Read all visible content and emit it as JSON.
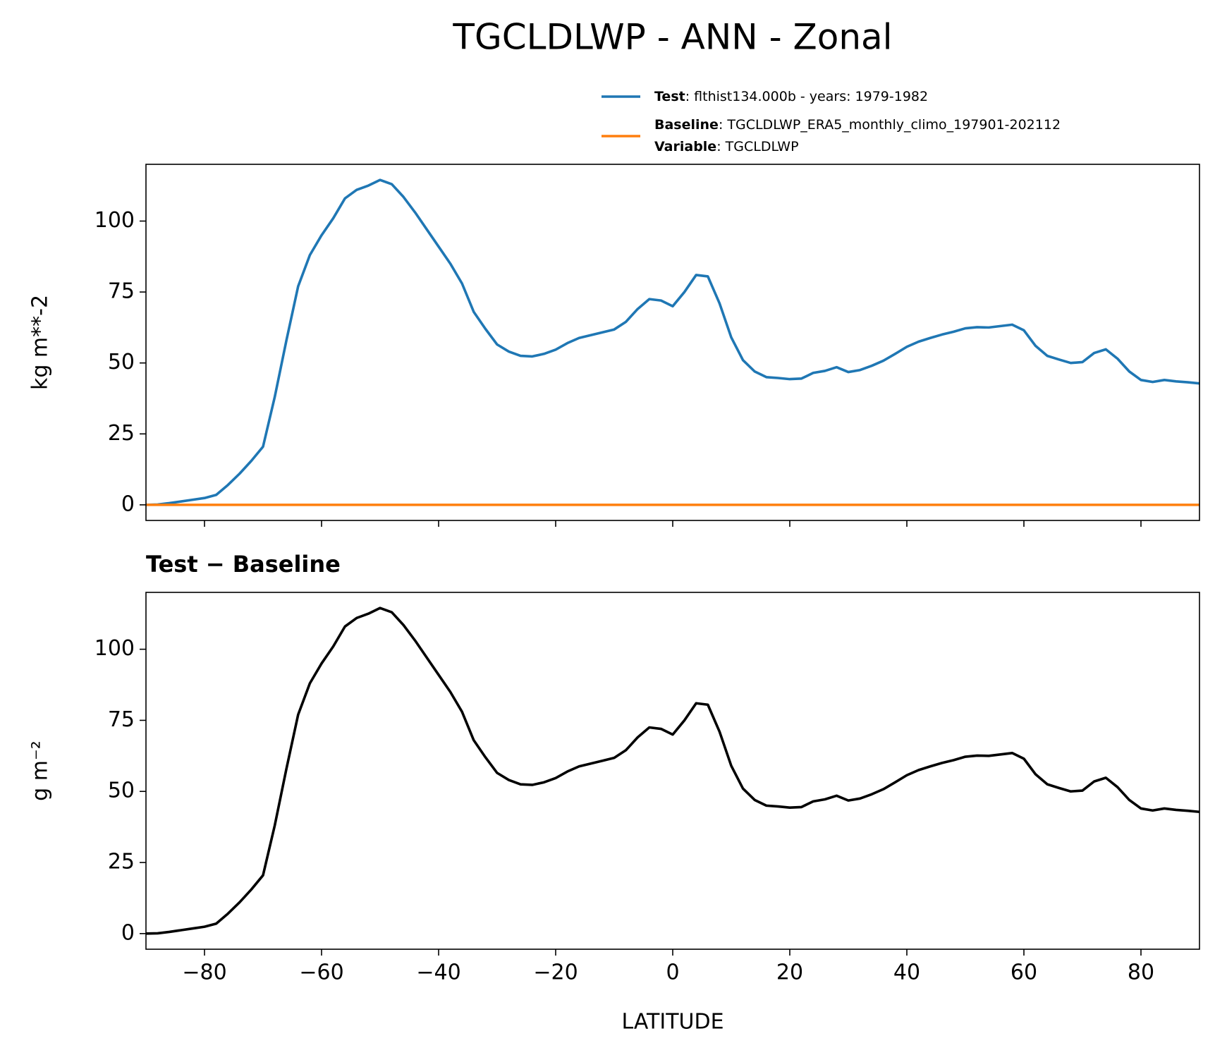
{
  "title": "TGCLDLWP - ANN - Zonal",
  "chart_data": [
    {
      "type": "line",
      "ylabel": "kg m**-2",
      "xlim": [
        -90,
        90
      ],
      "ylim": [
        -5.5,
        120
      ],
      "xticks": [
        -80,
        -60,
        -40,
        -20,
        0,
        20,
        40,
        60,
        80
      ],
      "yticks": [
        0,
        25,
        50,
        75,
        100
      ],
      "legend": true,
      "x": [
        -90,
        -88,
        -86,
        -84,
        -82,
        -80,
        -78,
        -76,
        -74,
        -72,
        -70,
        -68,
        -66,
        -64,
        -62,
        -60,
        -58,
        -56,
        -54,
        -52,
        -50,
        -48,
        -46,
        -44,
        -42,
        -40,
        -38,
        -36,
        -34,
        -32,
        -30,
        -28,
        -26,
        -24,
        -22,
        -20,
        -18,
        -16,
        -14,
        -12,
        -10,
        -8,
        -6,
        -4,
        -2,
        0,
        2,
        4,
        6,
        8,
        10,
        12,
        14,
        16,
        18,
        20,
        22,
        24,
        26,
        28,
        30,
        32,
        34,
        36,
        38,
        40,
        42,
        44,
        46,
        48,
        50,
        52,
        54,
        56,
        58,
        60,
        62,
        64,
        66,
        68,
        70,
        72,
        74,
        76,
        78,
        80,
        82,
        84,
        86,
        88,
        90
      ],
      "series": [
        {
          "name": "Test",
          "detail": ": flthist134.000b - years: 1979-1982",
          "color": "#1f77b4",
          "values": [
            0,
            0.1,
            0.6,
            1.2,
            1.8,
            2.4,
            3.5,
            7,
            11,
            15.5,
            20.5,
            38,
            58,
            77,
            88,
            95,
            101,
            108,
            111,
            112.5,
            114.5,
            113,
            108.5,
            103,
            97,
            91,
            85,
            78,
            68,
            62,
            56.5,
            54,
            52.5,
            52.3,
            53.2,
            54.7,
            57,
            58.8,
            59.8,
            60.8,
            61.8,
            64.5,
            69,
            72.5,
            72,
            70,
            75,
            81,
            80.5,
            71,
            59,
            51,
            47,
            45,
            44.7,
            44.3,
            44.5,
            46.5,
            47.2,
            48.5,
            46.8,
            47.5,
            49,
            50.8,
            53.2,
            55.7,
            57.5,
            58.8,
            60,
            61,
            62.2,
            62.6,
            62.5,
            63,
            63.5,
            61.5,
            56,
            52.5,
            51.2,
            50,
            50.3,
            53.5,
            54.8,
            51.5,
            47,
            44,
            43.3,
            44,
            43.5,
            43.2,
            42.8
          ]
        },
        {
          "name": "Baseline",
          "detail": ": TGCLDLWP_ERA5_monthly_climo_197901-202112",
          "extra_name": "Variable",
          "extra_detail": ": TGCLDLWP",
          "color": "#ff7f0e",
          "values": [
            0,
            0,
            0,
            0,
            0,
            0,
            0,
            0,
            0,
            0,
            0,
            0,
            0,
            0,
            0,
            0,
            0,
            0,
            0,
            0,
            0,
            0,
            0,
            0,
            0,
            0,
            0,
            0,
            0,
            0,
            0,
            0,
            0,
            0,
            0,
            0,
            0,
            0,
            0,
            0,
            0,
            0,
            0,
            0,
            0,
            0,
            0,
            0,
            0,
            0,
            0,
            0,
            0,
            0,
            0,
            0,
            0,
            0,
            0,
            0,
            0,
            0,
            0,
            0,
            0,
            0,
            0,
            0,
            0,
            0,
            0,
            0,
            0,
            0,
            0,
            0,
            0,
            0,
            0,
            0,
            0,
            0,
            0,
            0,
            0,
            0,
            0,
            0,
            0,
            0,
            0
          ]
        }
      ]
    },
    {
      "type": "line",
      "title": "Test − Baseline",
      "ylabel": "g m⁻²",
      "xlabel": "LATITUDE",
      "xlim": [
        -90,
        90
      ],
      "ylim": [
        -5.5,
        120
      ],
      "xticks": [
        {
          "value": -80,
          "label": "−80"
        },
        {
          "value": -60,
          "label": "−60"
        },
        {
          "value": -40,
          "label": "−40"
        },
        {
          "value": -20,
          "label": "−20"
        },
        0,
        20,
        40,
        60,
        80
      ],
      "yticks": [
        0,
        25,
        50,
        75,
        100
      ],
      "x": [
        -90,
        -88,
        -86,
        -84,
        -82,
        -80,
        -78,
        -76,
        -74,
        -72,
        -70,
        -68,
        -66,
        -64,
        -62,
        -60,
        -58,
        -56,
        -54,
        -52,
        -50,
        -48,
        -46,
        -44,
        -42,
        -40,
        -38,
        -36,
        -34,
        -32,
        -30,
        -28,
        -26,
        -24,
        -22,
        -20,
        -18,
        -16,
        -14,
        -12,
        -10,
        -8,
        -6,
        -4,
        -2,
        0,
        2,
        4,
        6,
        8,
        10,
        12,
        14,
        16,
        18,
        20,
        22,
        24,
        26,
        28,
        30,
        32,
        34,
        36,
        38,
        40,
        42,
        44,
        46,
        48,
        50,
        52,
        54,
        56,
        58,
        60,
        62,
        64,
        66,
        68,
        70,
        72,
        74,
        76,
        78,
        80,
        82,
        84,
        86,
        88,
        90
      ],
      "series": [
        {
          "color": "#000000",
          "values": [
            0,
            0.1,
            0.6,
            1.2,
            1.8,
            2.4,
            3.5,
            7,
            11,
            15.5,
            20.5,
            38,
            58,
            77,
            88,
            95,
            101,
            108,
            111,
            112.5,
            114.5,
            113,
            108.5,
            103,
            97,
            91,
            85,
            78,
            68,
            62,
            56.5,
            54,
            52.5,
            52.3,
            53.2,
            54.7,
            57,
            58.8,
            59.8,
            60.8,
            61.8,
            64.5,
            69,
            72.5,
            72,
            70,
            75,
            81,
            80.5,
            71,
            59,
            51,
            47,
            45,
            44.7,
            44.3,
            44.5,
            46.5,
            47.2,
            48.5,
            46.8,
            47.5,
            49,
            50.8,
            53.2,
            55.7,
            57.5,
            58.8,
            60,
            61,
            62.2,
            62.6,
            62.5,
            63,
            63.5,
            61.5,
            56,
            52.5,
            51.2,
            50,
            50.3,
            53.5,
            54.8,
            51.5,
            47,
            44,
            43.3,
            44,
            43.5,
            43.2,
            42.8
          ]
        }
      ]
    }
  ]
}
